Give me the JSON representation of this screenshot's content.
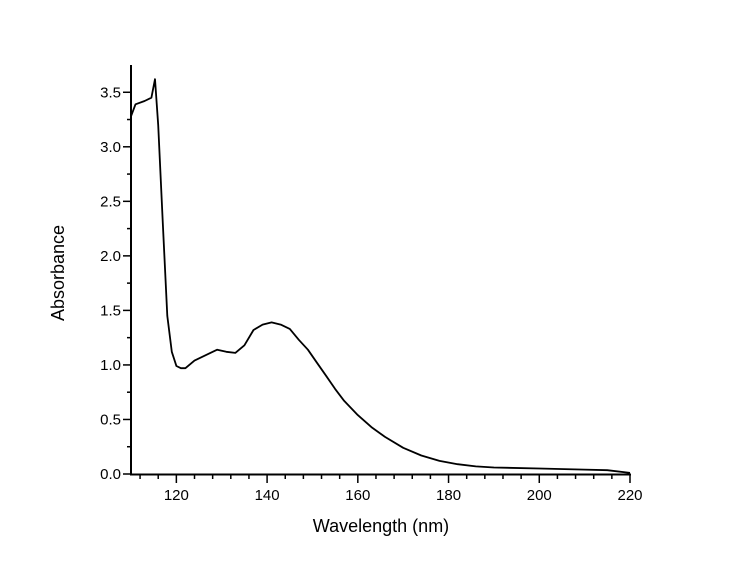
{
  "chart_data": {
    "type": "line",
    "title": "",
    "xlabel": "Wavelength (nm)",
    "ylabel": "Absorbance",
    "xlim": [
      110,
      220
    ],
    "ylim": [
      0,
      3.75
    ],
    "xticks": [
      120,
      140,
      160,
      180,
      200,
      220
    ],
    "xtick_labels": [
      "120",
      "140",
      "160",
      "180",
      "200",
      "220"
    ],
    "yticks": [
      0,
      0.5,
      1,
      1.5,
      2,
      2.5,
      3,
      3.5
    ],
    "ytick_labels": [
      "0.0",
      "0.5",
      "1.0",
      "1.5",
      "2.0",
      "2.5",
      "3.0",
      "3.5"
    ],
    "x_minor_step": 4,
    "y_minor_step": 0.25,
    "grid": false,
    "legend": "none",
    "series": [
      {
        "name": "Absorbance",
        "color": "#000000",
        "x": [
          110,
          111,
          113,
          114.5,
          115.3,
          116,
          117,
          118,
          119,
          120,
          121,
          122,
          124,
          126,
          128,
          129,
          131,
          133,
          135,
          137,
          139,
          141,
          143,
          145,
          147,
          149,
          151,
          153,
          155,
          157,
          160,
          163,
          166,
          170,
          174,
          178,
          182,
          186,
          190,
          200,
          210,
          215,
          220
        ],
        "y": [
          3.28,
          3.39,
          3.42,
          3.45,
          3.62,
          3.2,
          2.3,
          1.45,
          1.12,
          0.99,
          0.97,
          0.97,
          1.04,
          1.08,
          1.12,
          1.14,
          1.12,
          1.11,
          1.18,
          1.32,
          1.37,
          1.39,
          1.37,
          1.33,
          1.23,
          1.14,
          1.02,
          0.9,
          0.78,
          0.67,
          0.54,
          0.43,
          0.34,
          0.24,
          0.17,
          0.12,
          0.09,
          0.07,
          0.06,
          0.05,
          0.04,
          0.035,
          0.01
        ]
      }
    ]
  }
}
